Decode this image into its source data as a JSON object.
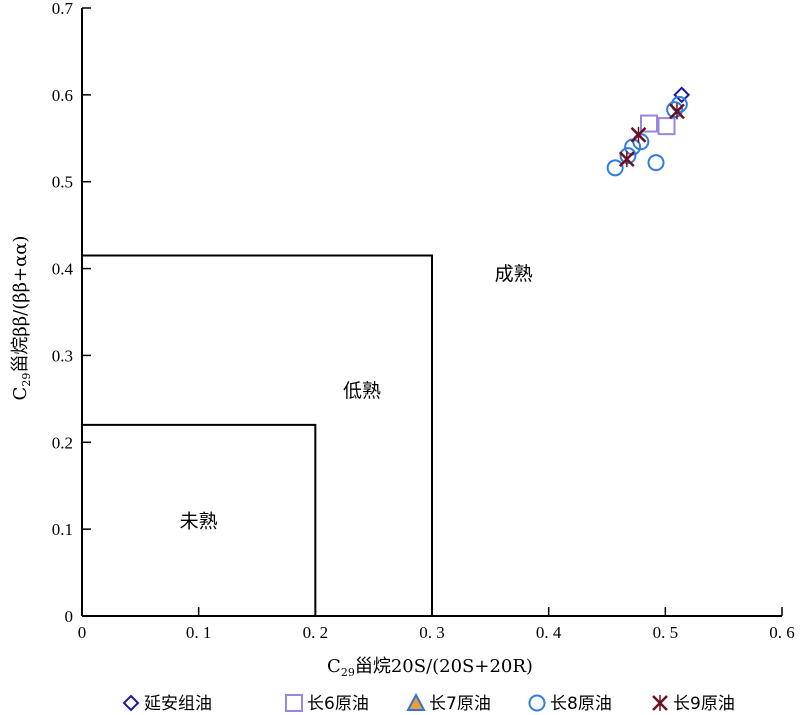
{
  "chart_data": {
    "type": "scatter",
    "title": "",
    "xlabel": {
      "prefix": "C",
      "sub": "29",
      "text": "甾烷20S/(20S+20R)"
    },
    "ylabel": {
      "prefix": "C",
      "sub": "29",
      "text": "甾烷ββ/(ββ+αα)"
    },
    "xlim": [
      0,
      0.6
    ],
    "ylim": [
      0,
      0.7
    ],
    "x_ticks": [
      {
        "value": 0,
        "label": "0"
      },
      {
        "value": 0.1,
        "label": "0. 1"
      },
      {
        "value": 0.2,
        "label": "0. 2"
      },
      {
        "value": 0.3,
        "label": "0. 3"
      },
      {
        "value": 0.4,
        "label": "0. 4"
      },
      {
        "value": 0.5,
        "label": "0. 5"
      },
      {
        "value": 0.6,
        "label": "0. 6"
      }
    ],
    "y_ticks": [
      {
        "value": 0,
        "label": "0"
      },
      {
        "value": 0.1,
        "label": "0.1"
      },
      {
        "value": 0.2,
        "label": "0.2"
      },
      {
        "value": 0.3,
        "label": "0.3"
      },
      {
        "value": 0.4,
        "label": "0.4"
      },
      {
        "value": 0.5,
        "label": "0.5"
      },
      {
        "value": 0.6,
        "label": "0.6"
      },
      {
        "value": 0.7,
        "label": "0.7"
      }
    ],
    "grid": false,
    "legend_position": "bottom",
    "regions": [
      {
        "label": "未熟",
        "x_max": 0.2,
        "y_max": 0.22,
        "label_at": [
          0.1,
          0.11
        ]
      },
      {
        "label": "低熟",
        "x_max": 0.3,
        "y_max": 0.415,
        "label_at": [
          0.24,
          0.26
        ]
      },
      {
        "label": "成熟",
        "x_max": null,
        "y_max": null,
        "label_at": [
          0.37,
          0.395
        ]
      }
    ],
    "series": [
      {
        "name": "延安组油",
        "marker": "diamond",
        "color": "#1a1aa6",
        "points": [
          [
            0.514,
            0.6
          ]
        ]
      },
      {
        "name": "长6原油",
        "marker": "square",
        "color": "#9a86e0",
        "points": [
          [
            0.486,
            0.567
          ],
          [
            0.501,
            0.564
          ]
        ]
      },
      {
        "name": "长7原油",
        "marker": "triangle",
        "color": "#3a6fd8",
        "fill": "#e8a030",
        "points": []
      },
      {
        "name": "长8原油",
        "marker": "circle",
        "color": "#2f7de0",
        "points": [
          [
            0.457,
            0.516
          ],
          [
            0.468,
            0.53
          ],
          [
            0.472,
            0.54
          ],
          [
            0.479,
            0.546
          ],
          [
            0.492,
            0.522
          ],
          [
            0.508,
            0.583
          ],
          [
            0.512,
            0.589
          ]
        ]
      },
      {
        "name": "长9原油",
        "marker": "x-star",
        "color": "#6b1020",
        "points": [
          [
            0.467,
            0.526
          ],
          [
            0.477,
            0.554
          ],
          [
            0.51,
            0.581
          ]
        ]
      }
    ]
  }
}
